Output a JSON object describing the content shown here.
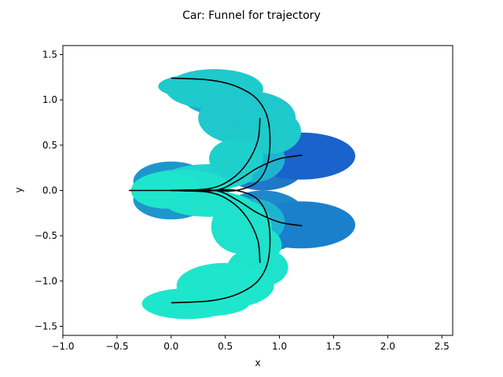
{
  "chart_data": {
    "type": "scatter",
    "title": "Car: Funnel for trajectory",
    "xlabel": "x",
    "ylabel": "y",
    "xlim": [
      -1.0,
      2.6
    ],
    "ylim": [
      -1.6,
      1.6
    ],
    "xticks": [
      -1.0,
      -0.5,
      0.0,
      0.5,
      1.0,
      1.5,
      2.0,
      2.5
    ],
    "xtick_labels": [
      "−1.0",
      "−0.5",
      "0.0",
      "0.5",
      "1.0",
      "1.5",
      "2.0",
      "2.5"
    ],
    "yticks": [
      -1.5,
      -1.0,
      -0.5,
      0.0,
      0.5,
      1.0,
      1.5
    ],
    "ytick_labels": [
      "−1.5",
      "−1.0",
      "−0.5",
      "0.0",
      "0.5",
      "1.0",
      "1.5"
    ],
    "grid": false,
    "legend": "none",
    "funnel_ellipses": [
      {
        "cx": 0.85,
        "cy": 0.34,
        "rx": 0.42,
        "ry": 0.34,
        "color": "#1f78c8"
      },
      {
        "cx": 0.85,
        "cy": -0.34,
        "rx": 0.42,
        "ry": 0.34,
        "color": "#1f88c8"
      },
      {
        "cx": 1.2,
        "cy": 0.38,
        "rx": 0.5,
        "ry": 0.26,
        "color": "#1a62cc"
      },
      {
        "cx": 1.2,
        "cy": -0.38,
        "rx": 0.5,
        "ry": 0.26,
        "color": "#1a80cc"
      },
      {
        "cx": 0.0,
        "cy": 0.1,
        "rx": 0.35,
        "ry": 0.22,
        "color": "#1e96cc"
      },
      {
        "cx": 0.0,
        "cy": -0.1,
        "rx": 0.35,
        "ry": 0.22,
        "color": "#1e96cc"
      },
      {
        "cx": 0.45,
        "cy": 1.05,
        "rx": 0.35,
        "ry": 0.22,
        "color": "#1eaad0"
      },
      {
        "cx": 0.45,
        "cy": -1.05,
        "rx": 0.35,
        "ry": 0.22,
        "color": "#1eaad0"
      },
      {
        "cx": 0.75,
        "cy": 0.35,
        "rx": 0.3,
        "ry": 0.26,
        "color": "#1eb4d0"
      },
      {
        "cx": 0.75,
        "cy": -0.35,
        "rx": 0.3,
        "ry": 0.26,
        "color": "#1eb4d0"
      },
      {
        "cx": 0.3,
        "cy": 1.15,
        "rx": 0.42,
        "ry": 0.14,
        "color": "#1ec8cc"
      },
      {
        "cx": 0.4,
        "cy": 1.12,
        "rx": 0.45,
        "ry": 0.22,
        "color": "#1ecacc"
      },
      {
        "cx": 0.7,
        "cy": 0.8,
        "rx": 0.45,
        "ry": 0.3,
        "color": "#1ec8cc"
      },
      {
        "cx": 0.9,
        "cy": 0.65,
        "rx": 0.3,
        "ry": 0.25,
        "color": "#1ecacc"
      },
      {
        "cx": 0.35,
        "cy": 0.15,
        "rx": 0.4,
        "ry": 0.14,
        "color": "#1ed4cc"
      },
      {
        "cx": 0.6,
        "cy": 0.35,
        "rx": 0.25,
        "ry": 0.22,
        "color": "#1ed0cc"
      },
      {
        "cx": 0.1,
        "cy": 0.03,
        "rx": 0.45,
        "ry": 0.2,
        "color": "#1ee0cc"
      },
      {
        "cx": -0.05,
        "cy": 0.0,
        "rx": 0.32,
        "ry": 0.2,
        "color": "#1ee6cc"
      },
      {
        "cx": 0.35,
        "cy": -0.15,
        "rx": 0.4,
        "ry": 0.14,
        "color": "#1ee2cc"
      },
      {
        "cx": 0.65,
        "cy": -0.4,
        "rx": 0.28,
        "ry": 0.3,
        "color": "#1ee2cc"
      },
      {
        "cx": 0.8,
        "cy": -0.6,
        "rx": 0.22,
        "ry": 0.2,
        "color": "#1ee2cc"
      },
      {
        "cx": 0.8,
        "cy": -0.85,
        "rx": 0.28,
        "ry": 0.22,
        "color": "#1ee2cc"
      },
      {
        "cx": 0.5,
        "cy": -1.05,
        "rx": 0.45,
        "ry": 0.25,
        "color": "#1ee6cc"
      },
      {
        "cx": 0.3,
        "cy": -1.25,
        "rx": 0.42,
        "ry": 0.14,
        "color": "#1ee6cc"
      },
      {
        "cx": 0.15,
        "cy": -1.25,
        "rx": 0.42,
        "ry": 0.17,
        "color": "#1ee6cc"
      }
    ],
    "series": [
      {
        "x": [
          -0.39,
          0.0
        ],
        "y": [
          0.0,
          0.0
        ]
      },
      {
        "x": [
          0.0,
          0.35,
          0.6,
          0.8,
          0.9,
          0.9,
          0.8,
          0.6,
          0.35,
          0.0
        ],
        "y": [
          0.0,
          0.0,
          0.0,
          0.1,
          0.35,
          0.75,
          1.0,
          1.15,
          1.22,
          1.24
        ]
      },
      {
        "x": [
          0.0,
          0.35,
          0.6,
          0.8,
          0.9,
          0.9,
          0.8,
          0.6,
          0.35,
          0.0
        ],
        "y": [
          0.0,
          0.0,
          0.0,
          -0.1,
          -0.35,
          -0.75,
          -1.0,
          -1.15,
          -1.22,
          -1.24
        ]
      },
      {
        "x": [
          0.0,
          0.35,
          0.55,
          0.7,
          0.8,
          0.82
        ],
        "y": [
          0.0,
          0.02,
          0.12,
          0.3,
          0.55,
          0.8
        ]
      },
      {
        "x": [
          0.0,
          0.35,
          0.55,
          0.7,
          0.8,
          0.82
        ],
        "y": [
          0.0,
          -0.02,
          -0.12,
          -0.3,
          -0.55,
          -0.8
        ]
      },
      {
        "x": [
          0.0,
          0.4,
          0.6,
          0.8,
          1.0,
          1.21
        ],
        "y": [
          0.0,
          0.0,
          0.1,
          0.25,
          0.35,
          0.39
        ]
      },
      {
        "x": [
          0.0,
          0.4,
          0.6,
          0.8,
          1.0,
          1.21
        ],
        "y": [
          0.0,
          0.0,
          -0.1,
          -0.25,
          -0.35,
          -0.39
        ]
      },
      {
        "x": [
          0.0,
          0.4
        ],
        "y": [
          0.0,
          0.0
        ]
      }
    ],
    "line_color": "#000000"
  }
}
